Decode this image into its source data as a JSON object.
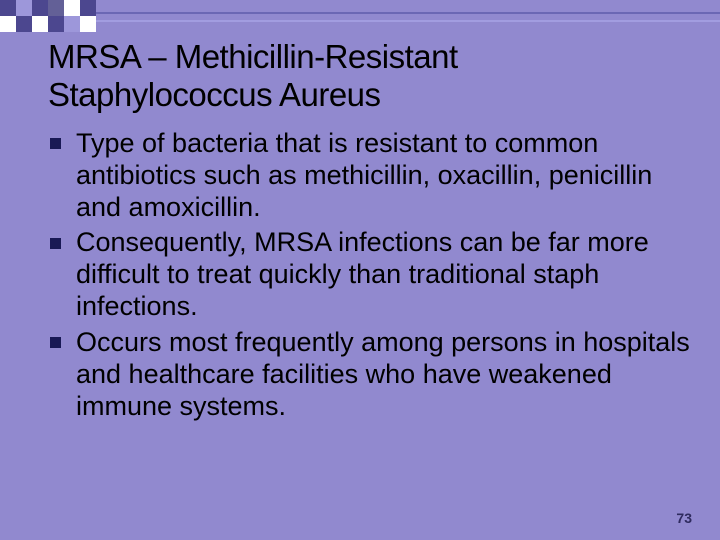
{
  "slide": {
    "background_color": "#9189cf",
    "title": {
      "text": "MRSA – Methicillin-Resistant Staphylococcus Aureus",
      "color": "#000000",
      "fontsize": 33
    },
    "bullets": {
      "items": [
        "Type of bacteria that is resistant to common antibiotics such as methicillin, oxacillin, penicillin and amoxicillin.",
        "Consequently, MRSA infections can be far more difficult to treat quickly than traditional staph infections.",
        "Occurs most frequently among persons in hospitals and healthcare facilities who have weakened immune systems."
      ],
      "text_color": "#000000",
      "fontsize": 27,
      "marker_color": "#191955"
    },
    "top_bar": {
      "line_colors": [
        "#6b67b4",
        "#a29de0"
      ],
      "checker_pattern": [
        [
          "#4c478f",
          "#9d97da",
          "#4c478f",
          "#636097",
          "#ffffff",
          "#4c478f"
        ],
        [
          "#ffffff",
          "#4c478f",
          "#ffffff",
          "#4c478f",
          "#9d97da",
          "#ffffff"
        ]
      ]
    },
    "page_number": {
      "text": "73",
      "color": "#2f2b5f",
      "fontsize": 14
    }
  }
}
